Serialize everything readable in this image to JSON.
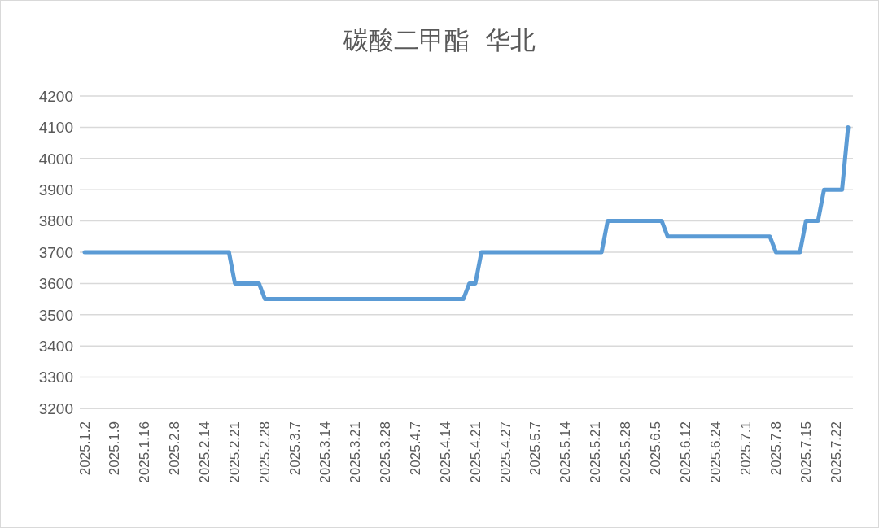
{
  "chart_data": {
    "type": "line",
    "title": "碳酸二甲酯  华北",
    "categories": [
      "2025.1.2",
      null,
      null,
      null,
      null,
      "2025.1.9",
      null,
      null,
      null,
      null,
      "2025.1.16",
      null,
      null,
      null,
      null,
      "2025.2.8",
      null,
      null,
      null,
      null,
      "2025.2.14",
      null,
      null,
      null,
      null,
      "2025.2.21",
      null,
      null,
      null,
      null,
      "2025.2.28",
      null,
      null,
      null,
      null,
      "2025.3.7",
      null,
      null,
      null,
      null,
      "2025.3.14",
      null,
      null,
      null,
      null,
      "2025.3.21",
      null,
      null,
      null,
      null,
      "2025.3.28",
      null,
      null,
      null,
      null,
      "2025.4.7",
      null,
      null,
      null,
      null,
      "2025.4.14",
      null,
      null,
      null,
      null,
      "2025.4.21",
      null,
      null,
      null,
      null,
      "2025.4.27",
      null,
      null,
      null,
      null,
      "2025.5.7",
      null,
      null,
      null,
      null,
      "2025.5.14",
      null,
      null,
      null,
      null,
      "2025.5.21",
      null,
      null,
      null,
      null,
      "2025.5.28",
      null,
      null,
      null,
      null,
      "2025.6.5",
      null,
      null,
      null,
      null,
      "2025.6.12",
      null,
      null,
      null,
      null,
      "2025.6.24",
      null,
      null,
      null,
      null,
      "2025.7.1",
      null,
      null,
      null,
      null,
      "2025.7.8",
      null,
      null,
      null,
      null,
      "2025.7.15",
      null,
      null,
      null,
      null,
      "2025.7.22",
      null,
      null
    ],
    "series": [
      {
        "color": "#5b9bd5",
        "values": [
          3700,
          3700,
          3700,
          3700,
          3700,
          3700,
          3700,
          3700,
          3700,
          3700,
          3700,
          3700,
          3700,
          3700,
          3700,
          3700,
          3700,
          3700,
          3700,
          3700,
          3700,
          3700,
          3700,
          3700,
          3700,
          3600,
          3600,
          3600,
          3600,
          3600,
          3550,
          3550,
          3550,
          3550,
          3550,
          3550,
          3550,
          3550,
          3550,
          3550,
          3550,
          3550,
          3550,
          3550,
          3550,
          3550,
          3550,
          3550,
          3550,
          3550,
          3550,
          3550,
          3550,
          3550,
          3550,
          3550,
          3550,
          3550,
          3550,
          3550,
          3550,
          3550,
          3550,
          3550,
          3600,
          3600,
          3700,
          3700,
          3700,
          3700,
          3700,
          3700,
          3700,
          3700,
          3700,
          3700,
          3700,
          3700,
          3700,
          3700,
          3700,
          3700,
          3700,
          3700,
          3700,
          3700,
          3700,
          3800,
          3800,
          3800,
          3800,
          3800,
          3800,
          3800,
          3800,
          3800,
          3800,
          3750,
          3750,
          3750,
          3750,
          3750,
          3750,
          3750,
          3750,
          3750,
          3750,
          3750,
          3750,
          3750,
          3750,
          3750,
          3750,
          3750,
          3750,
          3700,
          3700,
          3700,
          3700,
          3700,
          3800,
          3800,
          3800,
          3900,
          3900,
          3900,
          3900,
          4100
        ]
      }
    ],
    "ylim": [
      3200,
      4200
    ],
    "yticks": [
      3200,
      3300,
      3400,
      3500,
      3600,
      3700,
      3800,
      3900,
      4000,
      4100,
      4200
    ],
    "grid": "y",
    "legend": false,
    "marker": "none",
    "line_style": "solid"
  }
}
